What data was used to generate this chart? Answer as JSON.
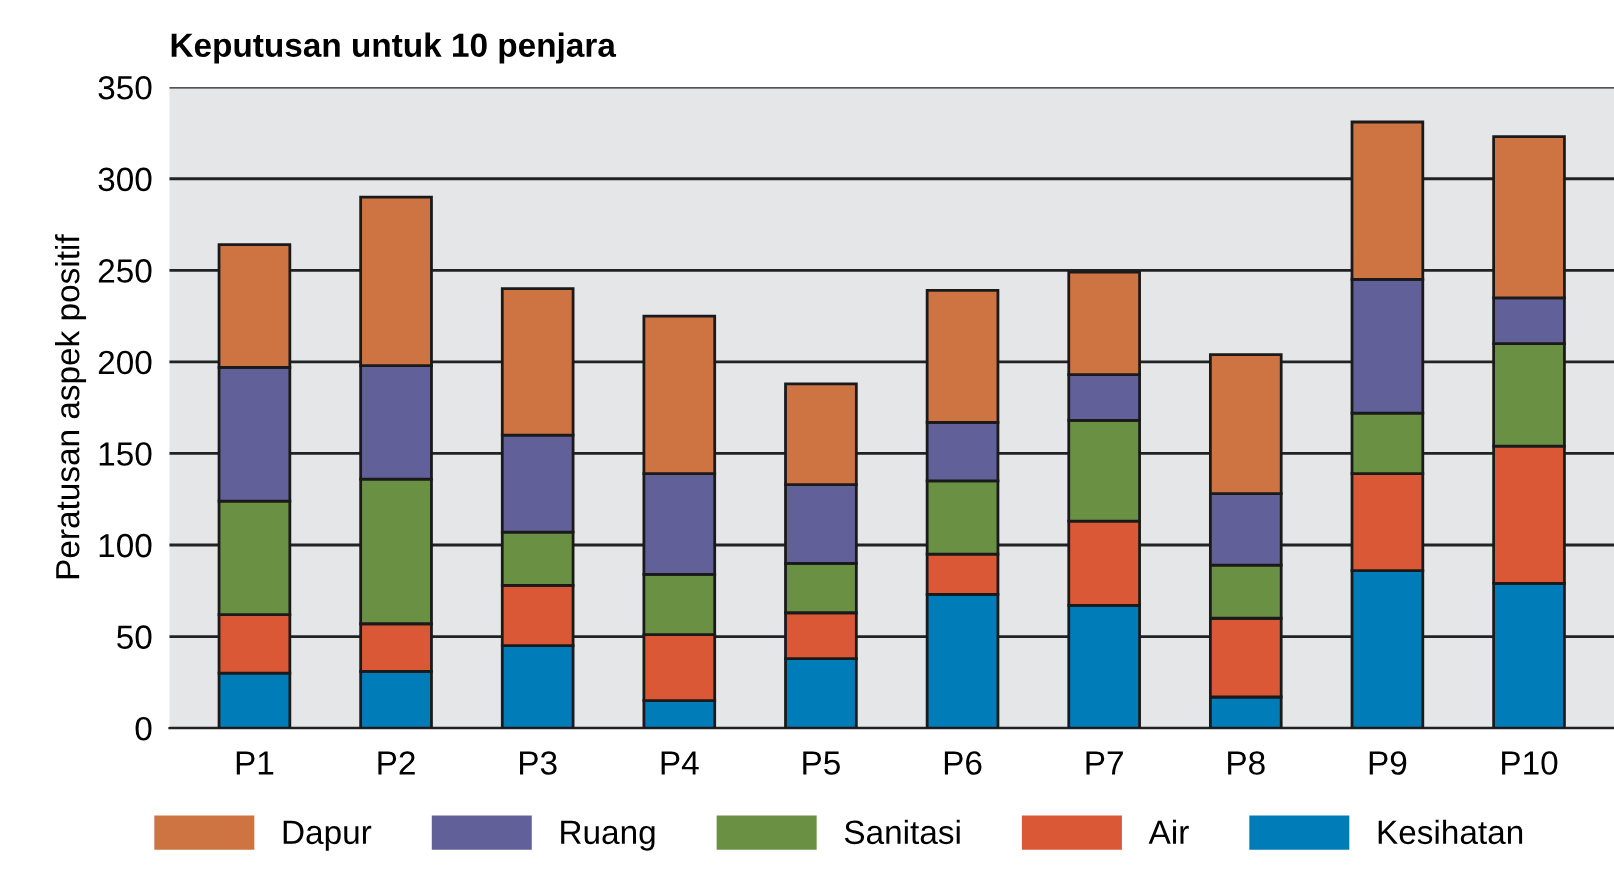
{
  "chart_data": {
    "type": "bar",
    "stacked": true,
    "title": "Keputusan untuk 10 penjara",
    "ylabel": "Peratusan aspek positif",
    "categories": [
      "P1",
      "P2",
      "P3",
      "P4",
      "P5",
      "P6",
      "P7",
      "P8",
      "P9",
      "P10"
    ],
    "series": [
      {
        "name": "Kesihatan",
        "color": "#007db8",
        "values": [
          30,
          31,
          45,
          15,
          38,
          73,
          67,
          17,
          86,
          79
        ]
      },
      {
        "name": "Air",
        "color": "#da5835",
        "values": [
          32,
          26,
          33,
          36,
          25,
          22,
          46,
          43,
          53,
          75
        ]
      },
      {
        "name": "Sanitasi",
        "color": "#6a9043",
        "values": [
          62,
          79,
          29,
          33,
          27,
          40,
          55,
          29,
          33,
          56
        ]
      },
      {
        "name": "Ruang",
        "color": "#626099",
        "values": [
          73,
          62,
          53,
          55,
          43,
          32,
          25,
          39,
          73,
          25
        ]
      },
      {
        "name": "Dapur",
        "color": "#cd7442",
        "values": [
          67,
          92,
          80,
          86,
          55,
          72,
          56,
          76,
          86,
          88
        ]
      }
    ],
    "ylim": [
      0,
      350
    ],
    "yticks": [
      0,
      50,
      100,
      150,
      200,
      250,
      300,
      350
    ],
    "grid": "y",
    "legend": "bottom"
  }
}
